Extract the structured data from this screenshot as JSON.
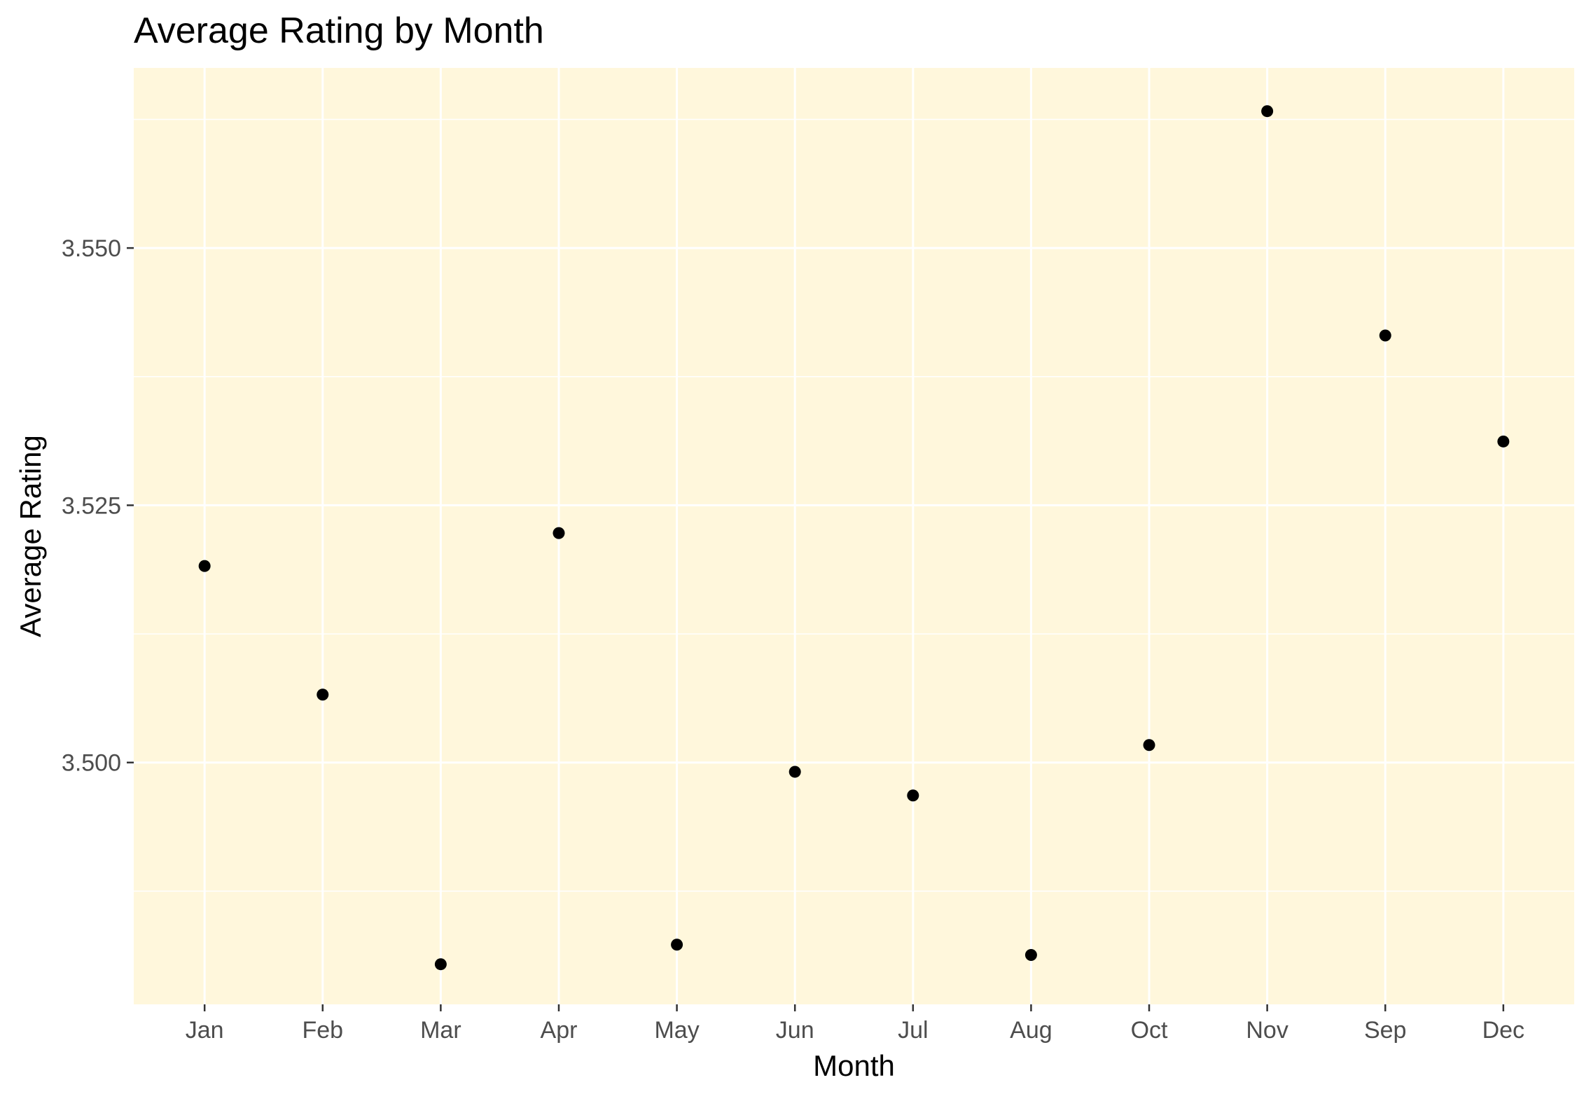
{
  "chart_data": {
    "type": "scatter",
    "title": "Average Rating by Month",
    "xlabel": "Month",
    "ylabel": "Average Rating",
    "categories": [
      "Jan",
      "Feb",
      "Mar",
      "Apr",
      "May",
      "Jun",
      "Jul",
      "Aug",
      "Oct",
      "Nov",
      "Sep",
      "Dec"
    ],
    "values": [
      3.5191,
      3.5066,
      3.4804,
      3.5223,
      3.4823,
      3.4991,
      3.4968,
      3.4813,
      3.5017,
      3.5633,
      3.5415,
      3.5312
    ],
    "ylim": [
      3.4765,
      3.5675
    ],
    "yticks": [
      3.5,
      3.525,
      3.55
    ],
    "ytick_labels": [
      "3.500",
      "3.525",
      "3.550"
    ],
    "grid": true,
    "legend": "none"
  },
  "colors": {
    "panel_background": "#fff7dc",
    "grid": "#ffffff",
    "points": "#000000",
    "tick_text": "#4d4d4d"
  }
}
